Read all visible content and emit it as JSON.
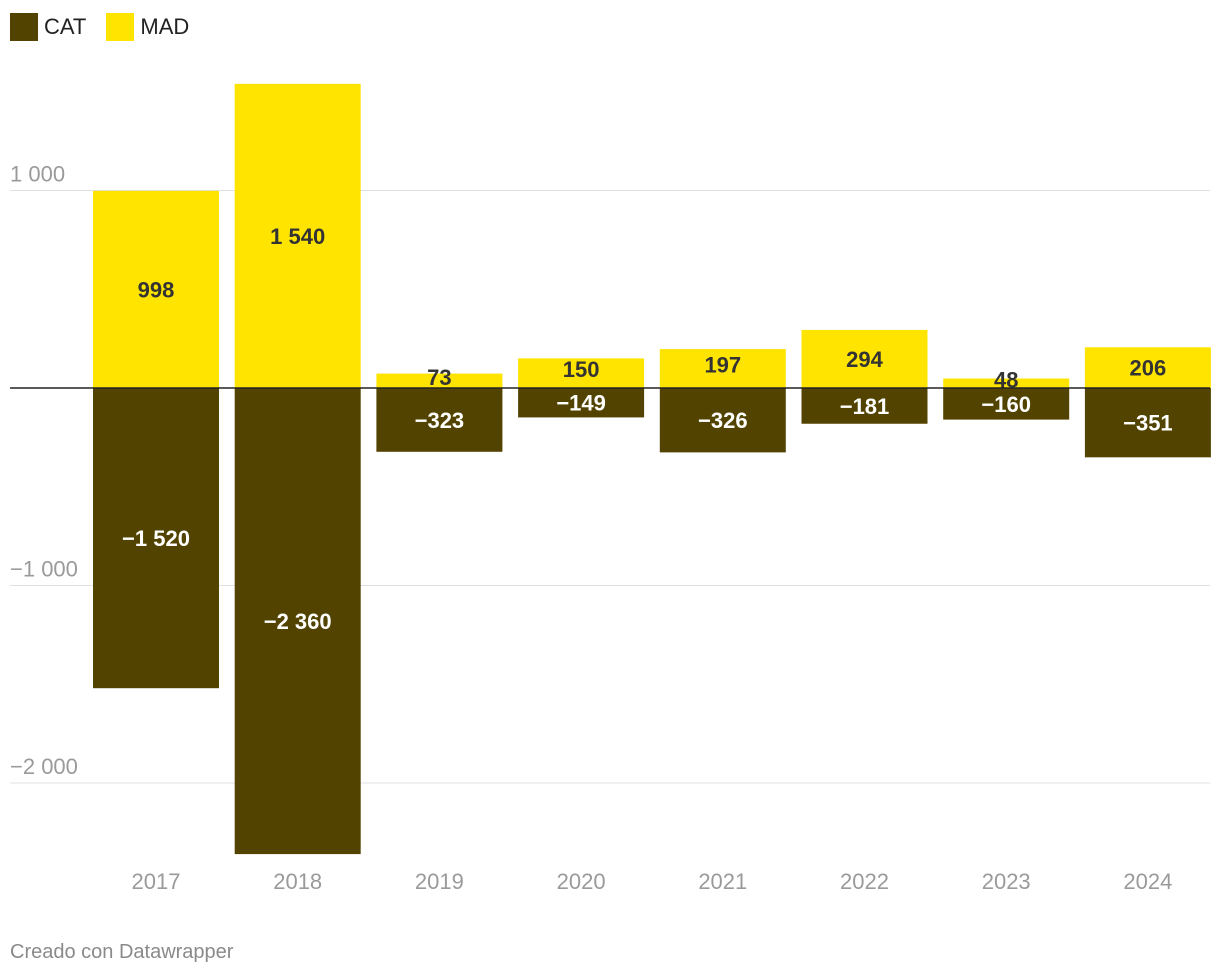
{
  "colors": {
    "cat": "#524400",
    "mad": "#ffe400",
    "grid": "#e0e0e0",
    "zero_line": "#222222",
    "tick_text": "#9a9a9a",
    "label_on_dark": "#ffffff",
    "label_on_light": "#333333"
  },
  "legend": [
    {
      "name": "CAT",
      "color": "#524400"
    },
    {
      "name": "MAD",
      "color": "#ffe400"
    }
  ],
  "chart_data": {
    "type": "bar",
    "stacked": "diverging",
    "categories": [
      "2017",
      "2018",
      "2019",
      "2020",
      "2021",
      "2022",
      "2023",
      "2024"
    ],
    "series": [
      {
        "name": "MAD",
        "values": [
          998,
          1540,
          73,
          150,
          197,
          294,
          48,
          206
        ],
        "labels": [
          "998",
          "1 540",
          "73",
          "150",
          "197",
          "294",
          "48",
          "206"
        ]
      },
      {
        "name": "CAT",
        "values": [
          -1520,
          -2360,
          -323,
          -149,
          -326,
          -181,
          -160,
          -351
        ],
        "labels": [
          "−1 520",
          "−2 360",
          "−323",
          "−149",
          "−326",
          "−181",
          "−160",
          "−351"
        ]
      }
    ],
    "y_ticks": [
      {
        "value": 1000,
        "label": "1 000"
      },
      {
        "value": -1000,
        "label": "−1 000"
      },
      {
        "value": -2000,
        "label": "−2 000"
      }
    ],
    "ylim": [
      -2370,
      1540
    ],
    "grid": true,
    "legend_position": "top-left",
    "title": "",
    "xlabel": "",
    "ylabel": ""
  },
  "footer": {
    "credit": "Creado con Datawrapper"
  }
}
